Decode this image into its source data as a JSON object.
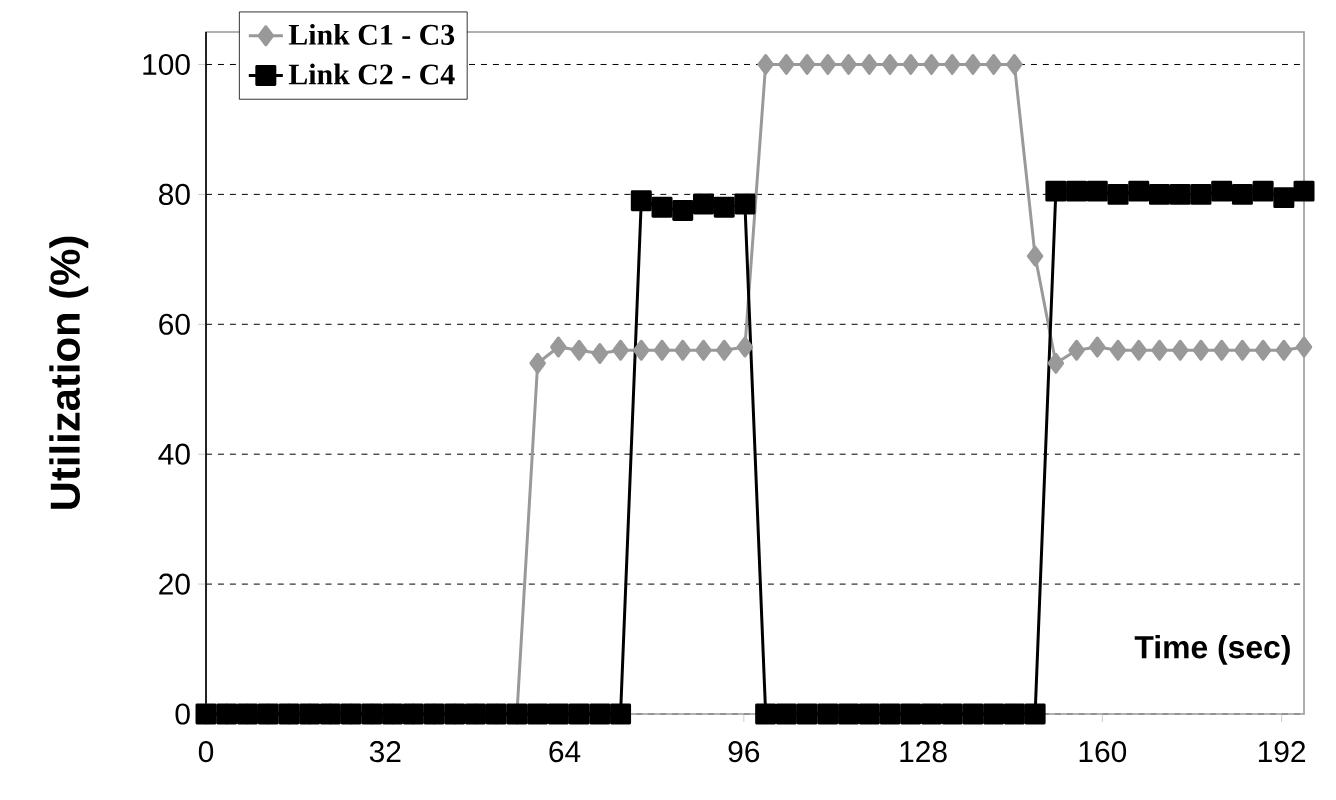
{
  "chart_data": {
    "type": "line",
    "xlabel": "Time (sec)",
    "ylabel": "Utilization (%)",
    "xlim": [
      0,
      196
    ],
    "xticks": [
      0,
      32,
      64,
      96,
      128,
      160,
      192
    ],
    "ylim": [
      0,
      105
    ],
    "yticks": [
      0,
      20,
      40,
      60,
      80,
      100
    ],
    "x": [
      0,
      3.7,
      7.4,
      11.1,
      14.8,
      18.5,
      22.2,
      25.9,
      29.6,
      33.3,
      37,
      40.7,
      44.4,
      48.1,
      51.8,
      55.5,
      59.2,
      62.9,
      66.6,
      70.3,
      74,
      77.7,
      81.4,
      85.1,
      88.8,
      92.5,
      96.2,
      99.9,
      103.6,
      107.3,
      111,
      114.7,
      118.4,
      122.1,
      125.8,
      129.5,
      133.2,
      136.9,
      140.6,
      144.3,
      148,
      151.7,
      155.4,
      159.1,
      162.8,
      166.5,
      170.2,
      173.9,
      177.6,
      181.3,
      185,
      188.7,
      192.4,
      196
    ],
    "grid": "y",
    "legend": "top left",
    "line_style": "solid",
    "series": [
      {
        "name": "Link C1 - C3",
        "color": "#999999",
        "marker": "diamond",
        "values": [
          0,
          0,
          0,
          0,
          0,
          0,
          0,
          0,
          0,
          0,
          0,
          0,
          0,
          0,
          0,
          0,
          54,
          56.5,
          56,
          55.5,
          56,
          56,
          56,
          56,
          56,
          56,
          56.5,
          100,
          100,
          100,
          100,
          100,
          100,
          100,
          100,
          100,
          100,
          100,
          100,
          100,
          70.5,
          54,
          56,
          56.5,
          56,
          56,
          56,
          56,
          56,
          56,
          56,
          56,
          56,
          56.5
        ]
      },
      {
        "name": "Link C2 - C4",
        "color": "#000000",
        "marker": "square",
        "values": [
          0,
          0,
          0,
          0,
          0,
          0,
          0,
          0,
          0,
          0,
          0,
          0,
          0,
          0,
          0,
          0,
          0,
          0,
          0,
          0,
          0,
          79,
          78,
          77.5,
          78.5,
          78,
          78.5,
          0,
          0,
          0,
          0,
          0,
          0,
          0,
          0,
          0,
          0,
          0,
          0,
          0,
          0,
          80.5,
          80.5,
          80.5,
          80,
          80.5,
          80,
          80,
          80,
          80.5,
          80,
          80.5,
          79.5,
          80.5
        ]
      }
    ]
  }
}
